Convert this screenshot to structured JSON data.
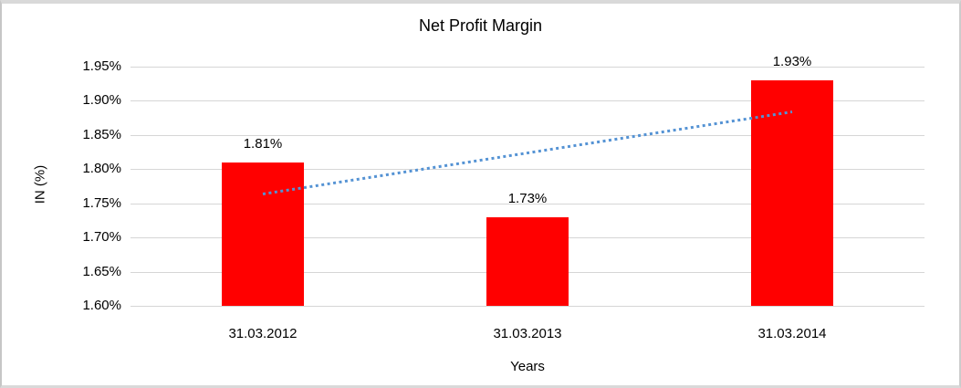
{
  "chart_data": {
    "type": "bar",
    "title": "Net Profit Margin",
    "xlabel": "Years",
    "ylabel": "IN (%)",
    "categories": [
      "31.03.2012",
      "31.03.2013",
      "31.03.2014"
    ],
    "values": [
      1.81,
      1.73,
      1.93
    ],
    "value_labels": [
      "1.81%",
      "1.73%",
      "1.93%"
    ],
    "ylim": [
      1.6,
      1.95
    ],
    "y_tick_step": 0.05,
    "y_tick_labels": [
      "1.60%",
      "1.65%",
      "1.70%",
      "1.75%",
      "1.80%",
      "1.85%",
      "1.90%",
      "1.95%"
    ],
    "grid": true,
    "legend": false,
    "bar_color": "#FF0000",
    "gridline_color": "#D6D6D6",
    "text_color": "#000000",
    "frame_color": "#D9D9D9",
    "trendline": {
      "type": "linear",
      "style": "dotted",
      "color": "#5593D4",
      "start_value": 1.7633,
      "end_value": 1.8833
    }
  }
}
